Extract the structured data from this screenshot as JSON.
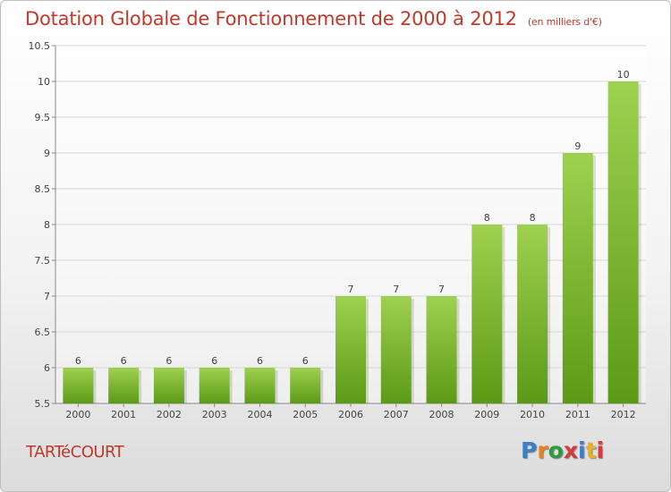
{
  "header": {
    "title": "Dotation Globale de Fonctionnement de 2000 à 2012",
    "subtitle": "(en milliers d'€)"
  },
  "footer": {
    "commune": "TARTéCOURT",
    "brand": "Proxiti",
    "brand_colors": [
      "#3a7fc8",
      "#e67e22",
      "#2b9c3f",
      "#d63a3a",
      "#3a7fc8",
      "#e6b422",
      "#d63a3a"
    ]
  },
  "colors": {
    "bar_light": "#9ed14f",
    "bar_dark": "#5c9a16",
    "title": "#c0392b"
  },
  "chart_data": {
    "type": "bar",
    "title": "Dotation Globale de Fonctionnement de 2000 à 2012",
    "subtitle": "(en milliers d'€)",
    "categories": [
      "2000",
      "2001",
      "2002",
      "2003",
      "2004",
      "2005",
      "2006",
      "2007",
      "2008",
      "2009",
      "2010",
      "2011",
      "2012"
    ],
    "values": [
      6,
      6,
      6,
      6,
      6,
      6,
      7,
      7,
      7,
      8,
      8,
      9,
      10
    ],
    "data_labels": [
      "6",
      "6",
      "6",
      "6",
      "6",
      "6",
      "7",
      "7",
      "7",
      "8",
      "8",
      "9",
      "10"
    ],
    "ylim": [
      5.5,
      10.5
    ],
    "yticks": [
      5.5,
      6,
      6.5,
      7,
      7.5,
      8,
      8.5,
      9,
      9.5,
      10,
      10.5
    ],
    "ytick_labels": [
      "5.5",
      "6",
      "6.5",
      "7",
      "7.5",
      "8",
      "8.5",
      "9",
      "9.5",
      "10",
      "10.5"
    ],
    "grid": true,
    "legend": "none"
  }
}
